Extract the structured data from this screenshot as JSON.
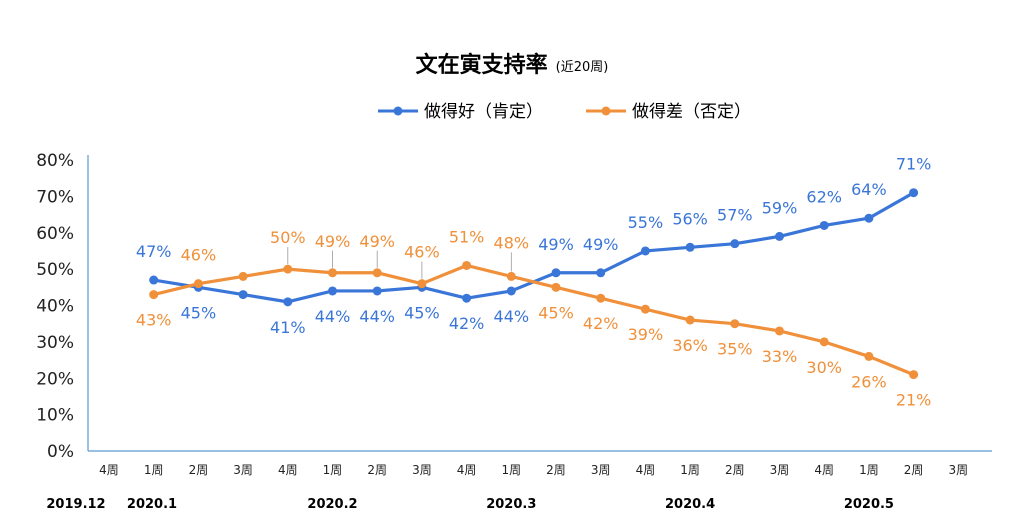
{
  "chart_data": {
    "type": "line",
    "title": "文在寅支持率",
    "subtitle": "(近20周)",
    "x": [
      "4周",
      "1周",
      "2周",
      "3周",
      "4周",
      "1周",
      "2周",
      "3周",
      "4周",
      "1周",
      "2周",
      "3周",
      "4周",
      "1周",
      "2周",
      "3周",
      "4周",
      "1周",
      "2周",
      "3周"
    ],
    "months": [
      {
        "label": "2019.12",
        "at": 0
      },
      {
        "label": "2020.1",
        "at": 1
      },
      {
        "label": "2020.2",
        "at": 5
      },
      {
        "label": "2020.3",
        "at": 9
      },
      {
        "label": "2020.4",
        "at": 13
      },
      {
        "label": "2020.5",
        "at": 17
      }
    ],
    "y_ticks": [
      "0%",
      "10%",
      "20%",
      "30%",
      "40%",
      "50%",
      "60%",
      "70%",
      "80%"
    ],
    "ylim": [
      0,
      80
    ],
    "series": [
      {
        "name": "做得好（肯定）",
        "color": "#3a76d8",
        "values": [
          null,
          47,
          45,
          43,
          41,
          44,
          44,
          45,
          42,
          44,
          49,
          49,
          55,
          56,
          57,
          59,
          62,
          64,
          71,
          null
        ],
        "labels": [
          "",
          "47%",
          "45%",
          "",
          "41%",
          "44%",
          "44%",
          "45%",
          "42%",
          "44%",
          "49%",
          "49%",
          "55%",
          "56%",
          "57%",
          "59%",
          "62%",
          "64%",
          "71%",
          ""
        ]
      },
      {
        "name": "做得差（否定）",
        "color": "#f0903a",
        "values": [
          null,
          43,
          46,
          48,
          50,
          49,
          49,
          46,
          51,
          48,
          45,
          42,
          39,
          36,
          35,
          33,
          30,
          26,
          21,
          null
        ],
        "labels": [
          "",
          "43%",
          "46%",
          "",
          "50%",
          "49%",
          "49%",
          "46%",
          "51%",
          "48%",
          "45%",
          "42%",
          "39%",
          "36%",
          "35%",
          "33%",
          "30%",
          "26%",
          "21%",
          ""
        ]
      }
    ]
  }
}
